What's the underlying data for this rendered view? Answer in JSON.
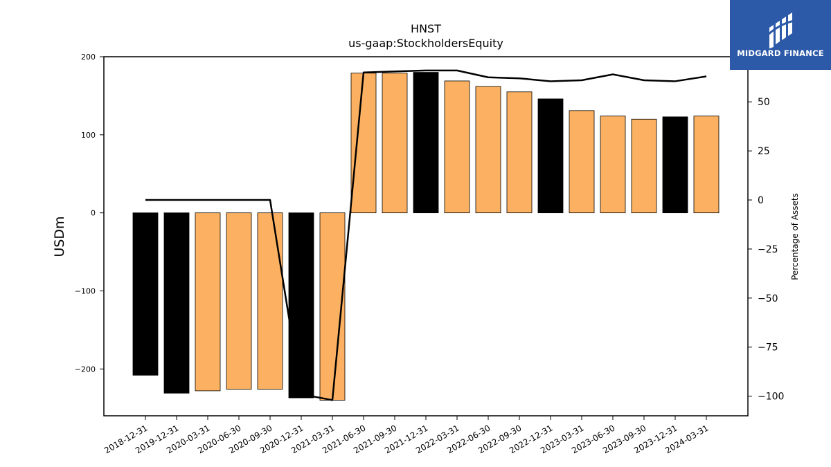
{
  "chart_data": {
    "type": "bar",
    "title": "HNST",
    "subtitle": "us-gaap:StockholdersEquity",
    "ylabel": "USDm",
    "y2label": "Percentage of Assets",
    "ylim": [
      -260,
      200
    ],
    "y2lim": [
      -110,
      73
    ],
    "yticks": [
      200,
      100,
      0,
      -100,
      -200
    ],
    "y2ticks": [
      50,
      25,
      0,
      -25,
      -50,
      -75,
      -100
    ],
    "categories": [
      "2018-12-31",
      "2019-12-31",
      "2020-03-31",
      "2020-06-30",
      "2020-09-30",
      "2020-12-31",
      "2021-03-31",
      "2021-06-30",
      "2021-09-30",
      "2021-12-31",
      "2022-03-31",
      "2022-06-30",
      "2022-09-30",
      "2022-12-31",
      "2023-03-31",
      "2023-06-30",
      "2023-09-30",
      "2023-12-31",
      "2024-03-31"
    ],
    "series": [
      {
        "values": [
          -208,
          -231,
          -228,
          -226,
          -226,
          -237,
          -240,
          179,
          179,
          180,
          169,
          162,
          155,
          146,
          131,
          124,
          120,
          123,
          124
        ],
        "annual": [
          true,
          true,
          false,
          false,
          false,
          true,
          false,
          false,
          false,
          true,
          false,
          false,
          false,
          true,
          false,
          false,
          false,
          true,
          false
        ]
      },
      {
        "values": [
          0,
          0,
          0,
          0,
          0,
          -99,
          -102,
          65,
          65.5,
          66,
          66,
          62.5,
          62,
          60.5,
          61,
          64,
          61,
          60.5,
          63
        ]
      }
    ],
    "colors": {
      "annual_bar": "#000000",
      "quarter_bar": "#fbb161",
      "line": "#000000",
      "axis": "#000000"
    }
  },
  "logo": {
    "text": "MIDGARD FINANCE",
    "bg": "#2d5aa8"
  }
}
